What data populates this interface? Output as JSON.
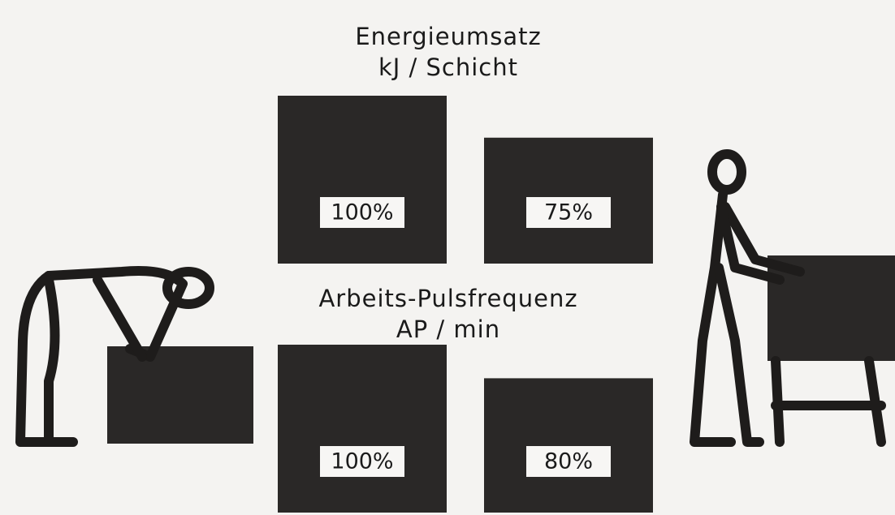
{
  "chart_data": [
    {
      "type": "bar",
      "title": "Energieumsatz",
      "subtitle": "kJ / Schicht",
      "categories": [
        null,
        null
      ],
      "values": [
        100,
        75
      ],
      "value_labels": [
        "100%",
        "75%"
      ],
      "color": "#2a2827"
    },
    {
      "type": "bar",
      "title": "Arbeits-Pulsfrequenz",
      "subtitle": "AP / min",
      "categories": [
        null,
        null
      ],
      "values": [
        100,
        80
      ],
      "value_labels": [
        "100%",
        "80%"
      ],
      "color": "#2a2827"
    }
  ]
}
